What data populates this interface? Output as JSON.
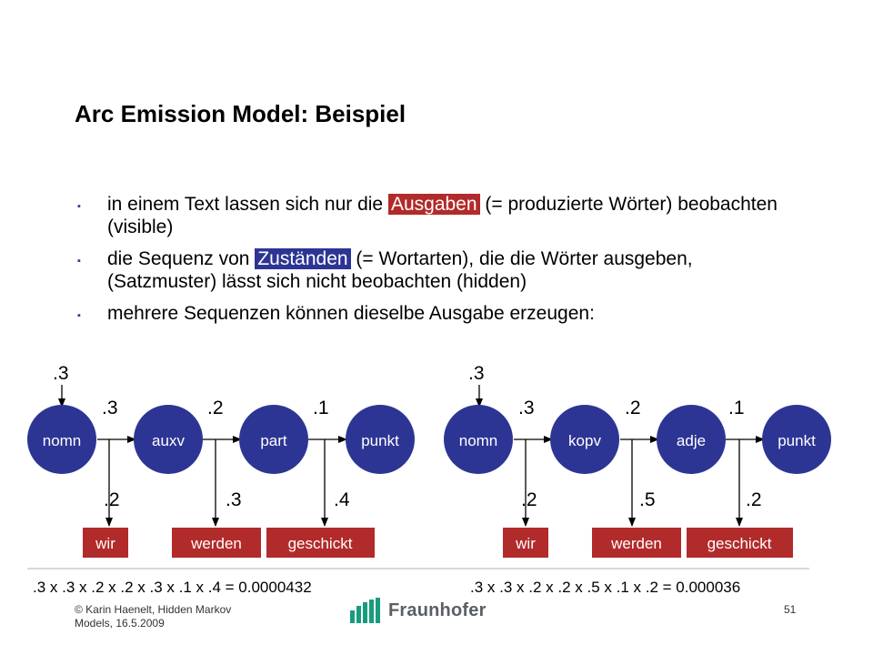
{
  "slide": {
    "title": "Arc Emission Model: Beispiel",
    "bullets": [
      {
        "before": "in einem Text lassen sich nur die",
        "highlight": "Ausgaben",
        "after": "(= produzierte Wörter) beobachten (visible)"
      },
      {
        "before": "die Sequenz von",
        "highlight": "Zuständen",
        "after": "(= Wortarten), die die Wörter ausgeben, (Satzmuster) lässt sich nicht beobachten (hidden)"
      },
      {
        "text": "mehrere Sequenzen können dieselbe Ausgabe erzeugen:"
      }
    ]
  },
  "diagram_left": {
    "start_prob": ".3",
    "states": [
      "nomn",
      "auxv",
      "part",
      "punkt"
    ],
    "transition_probs": [
      ".3",
      ".2",
      ".1"
    ],
    "emission_probs": [
      ".2",
      ".3",
      ".4"
    ],
    "words": [
      "wir",
      "werden",
      "geschickt"
    ],
    "formula": ".3 x .3 x .2 x .2 x .3 x .1 x .4 = 0.0000432"
  },
  "diagram_right": {
    "start_prob": ".3",
    "states": [
      "nomn",
      "kopv",
      "adje",
      "punkt"
    ],
    "transition_probs": [
      ".3",
      ".2",
      ".1"
    ],
    "emission_probs": [
      ".2",
      ".5",
      ".2"
    ],
    "words": [
      "wir",
      "werden",
      "geschickt"
    ],
    "formula": ".3 x .3 x .2 x .2 x .5 x .1 x .2 = 0.000036"
  },
  "footer": {
    "copyright": "© Karin  Haenelt, Hidden Markov Models, 16.5.2009",
    "logo_text": "Fraunhofer",
    "page_number": "51"
  },
  "colors": {
    "state_fill": "#2d3594",
    "word_fill": "#b22b2b",
    "highlight_red": "#b22b2b",
    "highlight_blue": "#2d3594",
    "logo_green": "#179c7d"
  },
  "icons": {
    "bullet": "square-bullet-icon",
    "logo": "fraunhofer-logo-icon"
  }
}
